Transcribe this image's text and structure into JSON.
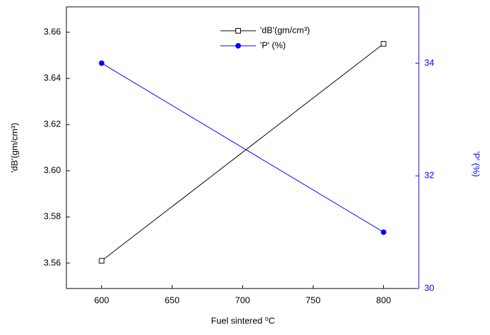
{
  "chart_data": {
    "type": "line",
    "x_label": "Fuel sintered ⁰C",
    "y_label": "'dB'(gm/cm³)",
    "y2_label": "'P' (%)",
    "x": [
      600,
      800
    ],
    "series": [
      {
        "name": "'dB'(gm/cm³)",
        "color": "#000000",
        "marker": "square-open",
        "values": [
          3.561,
          3.655
        ]
      },
      {
        "name": "'P' (%)",
        "color": "#0000ff",
        "marker": "circle-filled",
        "axis": "y2",
        "values": [
          34.0,
          31.0
        ]
      }
    ],
    "xlim": [
      575,
      825
    ],
    "xticks": [
      600,
      650,
      700,
      750,
      800
    ],
    "ylim": [
      3.549,
      3.671
    ],
    "yticks": [
      3.56,
      3.58,
      {
        "value": 3.6,
        "label": "3.60"
      },
      3.62,
      3.64,
      3.66
    ],
    "y2lim": [
      30,
      35
    ],
    "y2ticks": [
      30,
      32,
      34
    ],
    "legend": "top"
  }
}
